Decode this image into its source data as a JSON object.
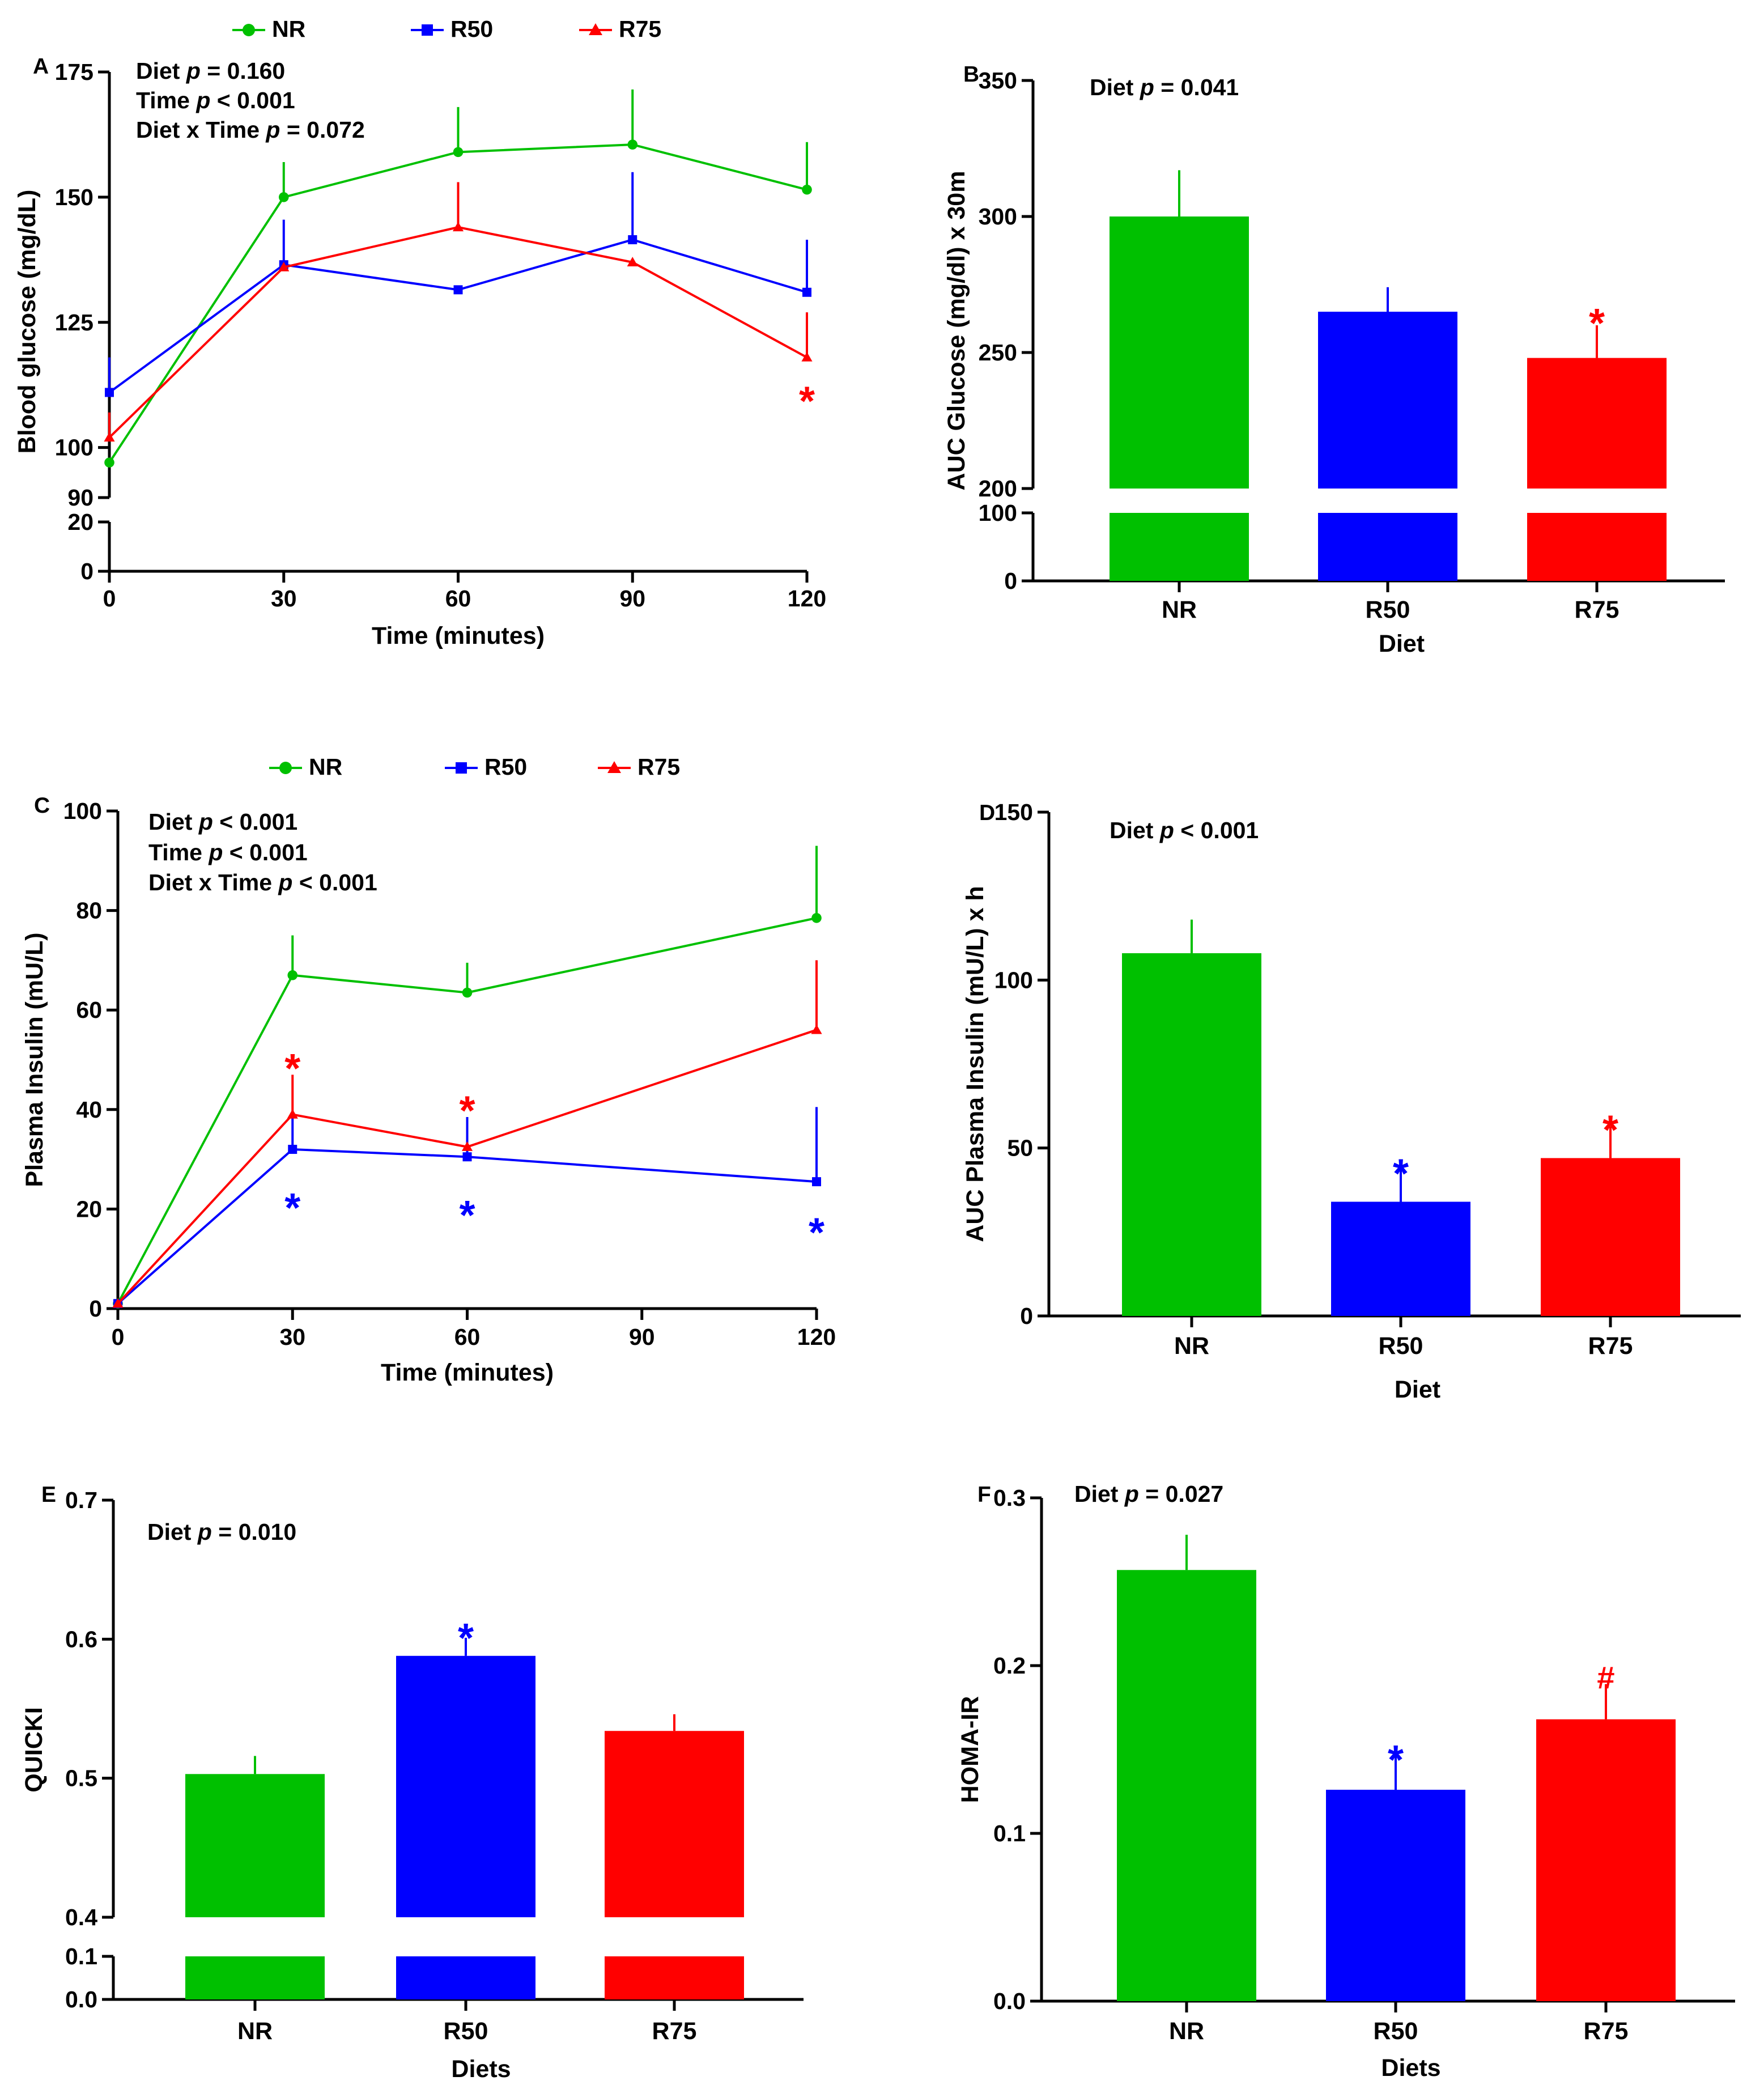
{
  "colors": {
    "NR": "#00c000",
    "R50": "#0000ff",
    "R75": "#ff0000"
  },
  "chart_data": [
    {
      "id": "A",
      "type": "line",
      "panel_label": "A",
      "xlabel": "Time (minutes)",
      "ylabel": "Blood glucose (mg/dL)",
      "x": [
        0,
        30,
        60,
        90,
        120
      ],
      "x_ticks": [
        "0",
        "30",
        "60",
        "90",
        "120"
      ],
      "xlim": [
        0,
        120
      ],
      "y_segments": [
        {
          "range": [
            90,
            175
          ],
          "ticks": [
            "90",
            "100",
            "125",
            "150",
            "175"
          ]
        },
        {
          "range": [
            0,
            20
          ],
          "ticks": [
            "0",
            "20"
          ]
        }
      ],
      "legend": [
        {
          "name": "NR",
          "marker": "circle",
          "color_key": "NR"
        },
        {
          "name": "R50",
          "marker": "square",
          "color_key": "R50"
        },
        {
          "name": "R75",
          "marker": "triangle",
          "color_key": "R75"
        }
      ],
      "series": [
        {
          "name": "NR",
          "color_key": "NR",
          "marker": "circle",
          "values": [
            97,
            150,
            159,
            160.5,
            151.5
          ],
          "errors": [
            0,
            7,
            9,
            11,
            9.5
          ]
        },
        {
          "name": "R50",
          "color_key": "R50",
          "marker": "square",
          "values": [
            111,
            136.5,
            131.5,
            141.5,
            131
          ],
          "errors": [
            7,
            9,
            0,
            13.5,
            10.5
          ]
        },
        {
          "name": "R75",
          "color_key": "R75",
          "marker": "triangle",
          "values": [
            102,
            136,
            144,
            137,
            118
          ],
          "errors": [
            5,
            0,
            9,
            0,
            9
          ]
        }
      ],
      "stats": [
        {
          "prefix": "Diet ",
          "p": "p",
          "suffix": " = 0.160"
        },
        {
          "prefix": "Time ",
          "p": "p",
          "suffix": " < 0.001"
        },
        {
          "prefix": "Diet x Time ",
          "p": "p",
          "suffix": " = 0.072"
        }
      ],
      "annotations": [
        {
          "text": "*",
          "color_key": "R75",
          "x": 120,
          "y": 111
        }
      ]
    },
    {
      "id": "B",
      "type": "bar",
      "panel_label": "B",
      "xlabel": "Diet",
      "ylabel": "AUC Glucose (mg/dl) x 30m",
      "categories": [
        "NR",
        "R50",
        "R75"
      ],
      "values": [
        300,
        265,
        248
      ],
      "errors": [
        17,
        9,
        12
      ],
      "y_segments": [
        {
          "range": [
            200,
            350
          ],
          "ticks": [
            "200",
            "250",
            "300",
            "350"
          ]
        },
        {
          "range": [
            0,
            100
          ],
          "ticks": [
            "0",
            "100"
          ]
        }
      ],
      "stats": [
        {
          "prefix": "Diet ",
          "p": "p",
          "suffix": " = 0.041"
        }
      ],
      "annotations": [
        {
          "text": "*",
          "color_key": "R75",
          "category": 2,
          "y": 264
        }
      ]
    },
    {
      "id": "C",
      "type": "line",
      "panel_label": "C",
      "xlabel": "Time (minutes)",
      "ylabel": "Plasma Insulin (mU/L)",
      "x": [
        0,
        30,
        60,
        120
      ],
      "x_ticks": [
        "0",
        "30",
        "60",
        "90",
        "120"
      ],
      "x_tick_values": [
        0,
        30,
        60,
        90,
        120
      ],
      "xlim": [
        0,
        120
      ],
      "y_segments": [
        {
          "range": [
            0,
            100
          ],
          "ticks": [
            "0",
            "20",
            "40",
            "60",
            "80",
            "100"
          ]
        }
      ],
      "legend": [
        {
          "name": "NR",
          "marker": "circle",
          "color_key": "NR"
        },
        {
          "name": "R50",
          "marker": "square",
          "color_key": "R50"
        },
        {
          "name": "R75",
          "marker": "triangle",
          "color_key": "R75"
        }
      ],
      "series": [
        {
          "name": "NR",
          "color_key": "NR",
          "marker": "circle",
          "values": [
            1,
            67,
            63.5,
            78.5
          ],
          "errors": [
            0,
            8,
            6,
            14.5
          ]
        },
        {
          "name": "R50",
          "color_key": "R50",
          "marker": "square",
          "values": [
            1,
            32,
            30.5,
            25.5
          ],
          "errors": [
            0,
            7,
            8,
            15
          ]
        },
        {
          "name": "R75",
          "color_key": "R75",
          "marker": "triangle",
          "values": [
            1,
            39,
            32.5,
            56
          ],
          "errors": [
            0,
            8,
            0,
            14
          ]
        }
      ],
      "stats": [
        {
          "prefix": "Diet ",
          "p": "p",
          "suffix": " < 0.001"
        },
        {
          "prefix": "Time ",
          "p": "p",
          "suffix": " < 0.001"
        },
        {
          "prefix": "Diet x Time ",
          "p": "p",
          "suffix": " < 0.001"
        }
      ],
      "annotations": [
        {
          "text": "*",
          "color_key": "R75",
          "x": 30,
          "y": 50
        },
        {
          "text": "*",
          "color_key": "R75",
          "x": 60,
          "y": 41.5
        },
        {
          "text": "*",
          "color_key": "R50",
          "x": 30,
          "y": 22
        },
        {
          "text": "*",
          "color_key": "R50",
          "x": 60,
          "y": 20.5
        },
        {
          "text": "*",
          "color_key": "R50",
          "x": 120,
          "y": 17
        }
      ]
    },
    {
      "id": "D",
      "type": "bar",
      "panel_label": "D",
      "xlabel": "Diet",
      "ylabel": "AUC Plasma Insulin (mU/L) x h",
      "categories": [
        "NR",
        "R50",
        "R75"
      ],
      "values": [
        108,
        34,
        47
      ],
      "errors": [
        10,
        10,
        9.5
      ],
      "y_segments": [
        {
          "range": [
            0,
            150
          ],
          "ticks": [
            "0",
            "50",
            "100",
            "150"
          ]
        }
      ],
      "stats": [
        {
          "prefix": "Diet ",
          "p": "p",
          "suffix": " < 0.001"
        }
      ],
      "annotations": [
        {
          "text": "*",
          "color_key": "R50",
          "category": 1,
          "y": 45
        },
        {
          "text": "*",
          "color_key": "R75",
          "category": 2,
          "y": 58
        }
      ]
    },
    {
      "id": "E",
      "type": "bar",
      "panel_label": "E",
      "xlabel": "Diets",
      "ylabel": "QUICKI",
      "categories": [
        "NR",
        "R50",
        "R75"
      ],
      "values": [
        0.503,
        0.588,
        0.534
      ],
      "errors": [
        0.013,
        0.013,
        0.012
      ],
      "y_segments": [
        {
          "range": [
            0.4,
            0.7
          ],
          "ticks": [
            "0.4",
            "0.5",
            "0.6",
            "0.7"
          ]
        },
        {
          "range": [
            0.0,
            0.1
          ],
          "ticks": [
            "0.0",
            "0.1"
          ]
        }
      ],
      "stats": [
        {
          "prefix": "Diet ",
          "p": "p",
          "suffix": " = 0.010"
        }
      ],
      "annotations": [
        {
          "text": "*",
          "color_key": "R50",
          "category": 1,
          "y": 0.607
        }
      ]
    },
    {
      "id": "F",
      "type": "bar",
      "panel_label": "F",
      "xlabel": "Diets",
      "ylabel": "HOMA-IR",
      "categories": [
        "NR",
        "R50",
        "R75"
      ],
      "values": [
        0.257,
        0.126,
        0.168
      ],
      "errors": [
        0.021,
        0.021,
        0.021
      ],
      "y_segments": [
        {
          "range": [
            0.0,
            0.3
          ],
          "ticks": [
            "0.0",
            "0.1",
            "0.2",
            "0.3"
          ]
        }
      ],
      "stats": [
        {
          "prefix": "Diet ",
          "p": "p",
          "suffix": " = 0.027"
        }
      ],
      "annotations": [
        {
          "text": "*",
          "color_key": "R50",
          "category": 1,
          "y": 0.149
        },
        {
          "text": "#",
          "color_key": "R75",
          "category": 2,
          "y": 0.193
        }
      ]
    }
  ]
}
